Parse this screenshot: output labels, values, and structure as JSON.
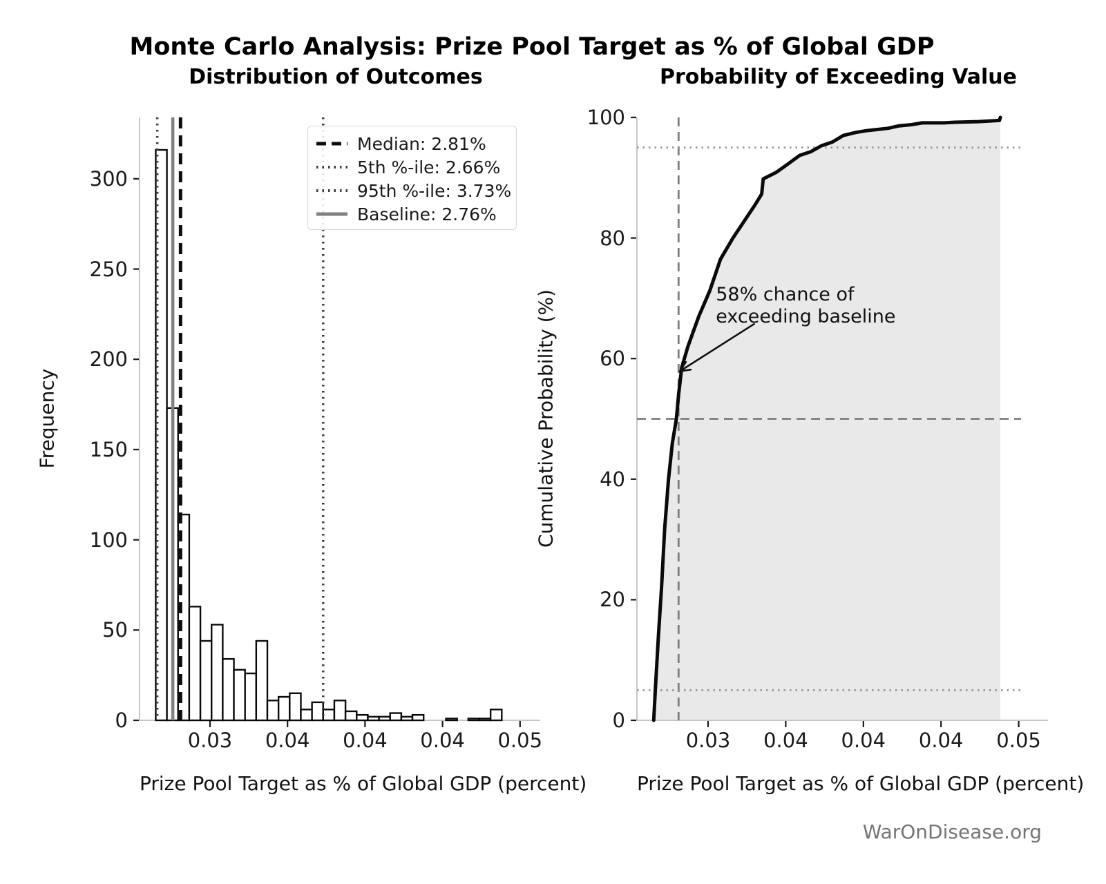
{
  "figure": {
    "suptitle": "Monte Carlo Analysis: Prize Pool Target as % of Global GDP",
    "footer": "WarOnDisease.org"
  },
  "colors": {
    "bar_fill": "#ffffff",
    "bar_edge": "#0a0a0a",
    "cdf_line": "#0a0a0a",
    "cdf_fill": "#e9e9e9",
    "median_line": "#0d0d0d",
    "percentile_line": "#3c3c3c",
    "baseline_line": "#808080",
    "ref_dashed_gray": "#7d7d7d",
    "ref_dotted_gray": "#969696",
    "spine": "#c6c6c6",
    "tick": "#1a1a1a"
  },
  "chart_data": [
    {
      "id": "histogram",
      "type": "bar",
      "title": "Distribution of Outcomes",
      "xlabel": "Prize Pool Target as % of Global GDP (percent)",
      "ylabel": "Frequency",
      "bin_start": 0.0265,
      "bin_width": 0.00072,
      "counts": [
        316,
        173,
        114,
        63,
        44,
        53,
        34,
        28,
        26,
        44,
        11,
        13,
        15,
        6,
        10,
        6,
        11,
        5,
        3,
        2,
        2,
        4,
        2,
        3,
        0,
        0,
        1,
        0,
        1,
        1,
        6
      ],
      "xlim": [
        0.025455,
        0.050767
      ],
      "ylim": [
        0,
        334
      ],
      "grid": false,
      "xticks": {
        "values": [
          0.03,
          0.035,
          0.04,
          0.045,
          0.05
        ],
        "labels": [
          "0.03",
          "0.04",
          "0.04",
          "0.04",
          "0.05"
        ]
      },
      "yticks": {
        "values": [
          0,
          50,
          100,
          150,
          200,
          250,
          300
        ],
        "labels": [
          "0",
          "50",
          "100",
          "150",
          "200",
          "250",
          "300"
        ]
      },
      "ref_lines": [
        {
          "name": "median",
          "x": 0.0281,
          "style": "dashed",
          "color": "#0d0d0d",
          "width": 5
        },
        {
          "name": "p5",
          "x": 0.0266,
          "style": "dotted",
          "color": "#3c3c3c",
          "width": 3.5
        },
        {
          "name": "p95",
          "x": 0.0373,
          "style": "dotted",
          "color": "#3c3c3c",
          "width": 3.5
        },
        {
          "name": "baseline",
          "x": 0.0276,
          "style": "solid",
          "color": "#808080",
          "width": 4.5
        }
      ],
      "legend": {
        "position": "upper right",
        "entries": [
          {
            "label": "Median: 2.81%",
            "style": "dashed",
            "color": "#0d0d0d",
            "width": 5
          },
          {
            "label": "5th %-ile: 2.66%",
            "style": "dotted",
            "color": "#3c3c3c",
            "width": 4
          },
          {
            "label": "95th %-ile: 3.73%",
            "style": "dotted",
            "color": "#3c3c3c",
            "width": 4
          },
          {
            "label": "Baseline: 2.76%",
            "style": "solid",
            "color": "#808080",
            "width": 5
          }
        ]
      }
    },
    {
      "id": "cdf",
      "type": "area",
      "title": "Probability of Exceeding Value",
      "xlabel": "Prize Pool Target as % of Global GDP (percent)",
      "ylabel": "Cumulative Probability (%)",
      "x": [
        0.0265,
        0.0266,
        0.0268,
        0.027,
        0.0272,
        0.02745,
        0.0277,
        0.02796,
        0.0281,
        0.0283,
        0.0287,
        0.0294,
        0.0301,
        0.0308,
        0.0316,
        0.0323,
        0.033,
        0.03345,
        0.03355,
        0.0344,
        0.0351,
        0.0359,
        0.0366,
        0.0373,
        0.038,
        0.0387,
        0.0395,
        0.0402,
        0.0409,
        0.0416,
        0.0423,
        0.0431,
        0.0438,
        0.0452,
        0.0459,
        0.0474,
        0.0481,
        0.04876,
        0.04882
      ],
      "y": [
        0,
        5,
        14,
        22,
        31.7,
        40,
        46,
        50,
        54,
        58.5,
        62,
        67,
        71.2,
        76.5,
        80,
        82.7,
        85.4,
        87.3,
        89.8,
        90.9,
        92.2,
        93.7,
        94.3,
        95.3,
        95.9,
        97.0,
        97.5,
        97.8,
        98.0,
        98.2,
        98.6,
        98.8,
        99.1,
        99.1,
        99.2,
        99.3,
        99.4,
        99.5,
        100
      ],
      "xlim": [
        0.025418,
        0.051352
      ],
      "ylim": [
        0,
        100
      ],
      "grid": false,
      "xticks": {
        "values": [
          0.03,
          0.035,
          0.04,
          0.045,
          0.05
        ],
        "labels": [
          "0.03",
          "0.04",
          "0.04",
          "0.04",
          "0.05"
        ]
      },
      "yticks": {
        "values": [
          0,
          20,
          40,
          60,
          80,
          100
        ],
        "labels": [
          "0",
          "20",
          "40",
          "60",
          "80",
          "100"
        ]
      },
      "ref_lines": [
        {
          "name": "median-vertical",
          "x": 0.0281,
          "style": "dashed",
          "color": "#7d7d7d",
          "width": 2.8
        },
        {
          "name": "p50-horizontal",
          "y": 50,
          "style": "dashed",
          "color": "#7d7d7d",
          "width": 2.8
        },
        {
          "name": "p95-horizontal",
          "y": 95,
          "style": "dotted",
          "color": "#969696",
          "width": 2.8
        },
        {
          "name": "p5-horizontal",
          "y": 5,
          "style": "dotted",
          "color": "#969696",
          "width": 2.8
        }
      ],
      "annotation": {
        "line1": "58% chance of",
        "line2": "exceeding baseline",
        "text_xy": [
          0.0305,
          72.4
        ],
        "arrow_start_xy": [
          0.033,
          65.8
        ],
        "arrow_tip_xy": [
          0.02818,
          57.9
        ]
      }
    }
  ]
}
